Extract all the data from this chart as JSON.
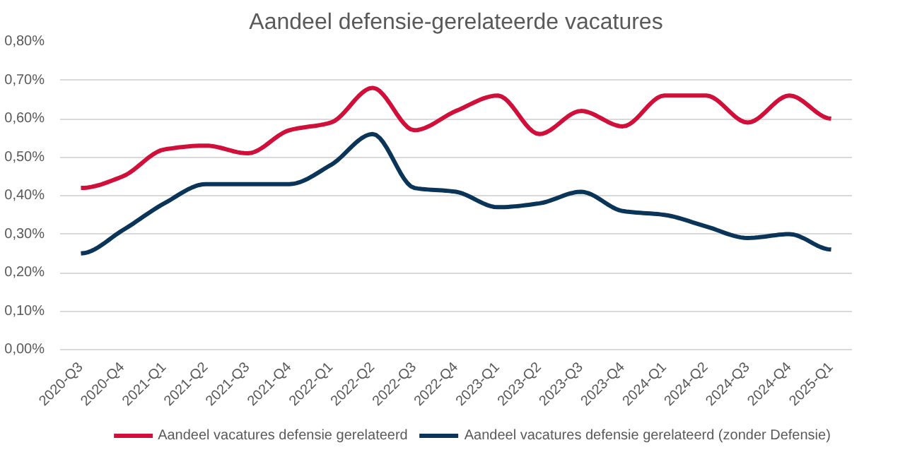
{
  "chart_data": {
    "type": "line",
    "title": "Aandeel defensie-gerelateerde vacatures",
    "categories": [
      "2020-Q3",
      "2020-Q4",
      "2021-Q1",
      "2021-Q2",
      "2021-Q3",
      "2021-Q4",
      "2022-Q1",
      "2022-Q2",
      "2022-Q3",
      "2022-Q4",
      "2023-Q1",
      "2023-Q2",
      "2023-Q3",
      "2023-Q4",
      "2024-Q1",
      "2024-Q2",
      "2024-Q3",
      "2024-Q4",
      "2025-Q1"
    ],
    "series": [
      {
        "name": "Aandeel vacatures defensie gerelateerd",
        "color": "#d0103a",
        "values": [
          0.42,
          0.45,
          0.52,
          0.53,
          0.51,
          0.57,
          0.59,
          0.68,
          0.57,
          0.62,
          0.66,
          0.56,
          0.62,
          0.58,
          0.66,
          0.66,
          0.59,
          0.66,
          0.6
        ]
      },
      {
        "name": "Aandeel vacatures defensie gerelateerd (zonder Defensie)",
        "color": "#0b3558",
        "values": [
          0.25,
          0.31,
          0.38,
          0.43,
          0.43,
          0.43,
          0.48,
          0.56,
          0.42,
          0.41,
          0.37,
          0.38,
          0.41,
          0.36,
          0.35,
          0.32,
          0.29,
          0.3,
          0.26
        ]
      }
    ],
    "ylim": [
      0,
      0.8
    ],
    "yticks": [
      {
        "value": 0,
        "label": "0,00%"
      },
      {
        "value": 0.1,
        "label": "0,10%"
      },
      {
        "value": 0.2,
        "label": "0,20%"
      },
      {
        "value": 0.3,
        "label": "0,30%"
      },
      {
        "value": 0.4,
        "label": "0,40%"
      },
      {
        "value": 0.5,
        "label": "0,50%"
      },
      {
        "value": 0.6,
        "label": "0,60%"
      },
      {
        "value": 0.7,
        "label": "0,70%"
      },
      {
        "value": 0.8,
        "label": "0,80%"
      }
    ],
    "grid": "y",
    "legend": "bottom",
    "marker": "none",
    "line_style": "solid"
  }
}
